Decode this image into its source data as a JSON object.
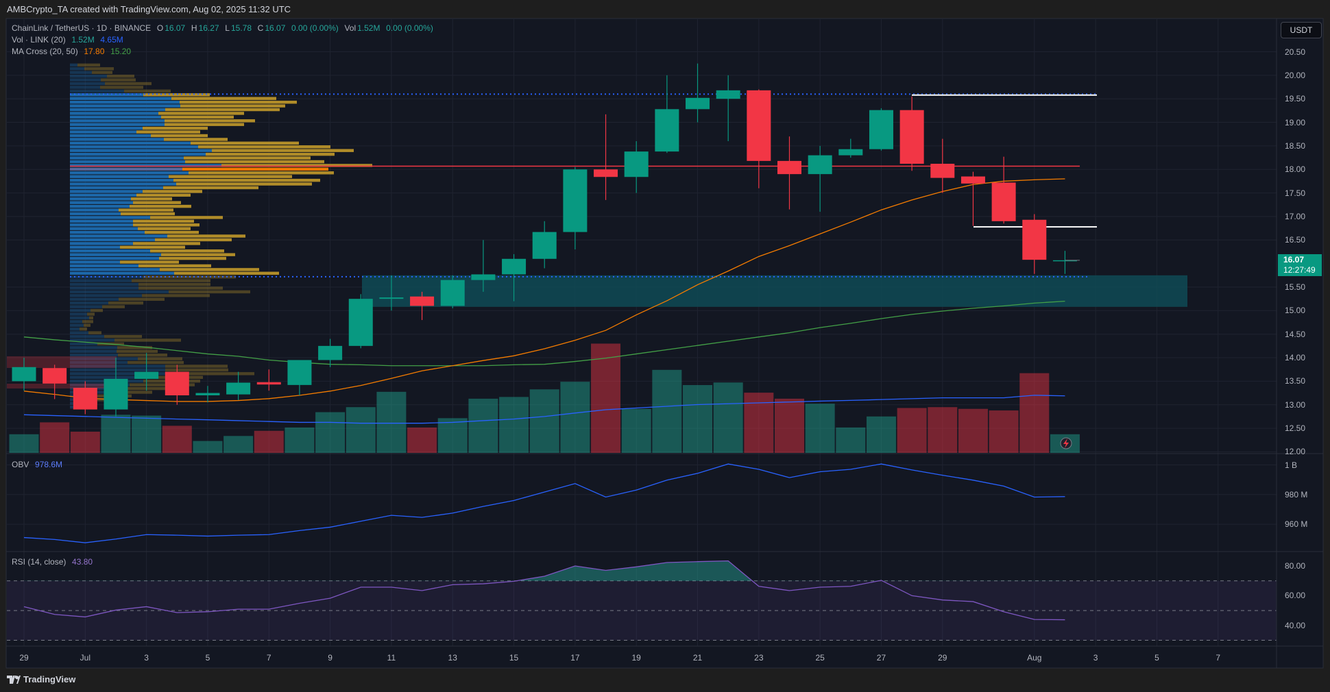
{
  "header": {
    "title": "AMBCrypto_TA created with TradingView.com, Aug 02, 2025 11:32 UTC"
  },
  "legend": {
    "symbol": "ChainLink / TetherUS · 1D · BINANCE",
    "o_label": "O",
    "o": "16.07",
    "h_label": "H",
    "h": "16.27",
    "l_label": "L",
    "l": "15.78",
    "c_label": "C",
    "c": "16.07",
    "change": "0.00 (0.00%)",
    "vol_label": "Vol",
    "vol": "1.52M",
    "vol_change": "0.00 (0.00%)",
    "vol_ind": "Vol · LINK (20)",
    "vol_ind_v1": "1.52M",
    "vol_ind_v2": "4.65M",
    "ma_ind": "MA Cross (20, 50)",
    "ma_fast": "17.80",
    "ma_slow": "15.20",
    "obv_ind": "OBV",
    "obv_val": "978.6M",
    "rsi_ind": "RSI (14, close)",
    "rsi_val": "43.80"
  },
  "price_axis": {
    "currency": "USDT",
    "ticks": [
      "20.50",
      "20.00",
      "19.50",
      "19.00",
      "18.50",
      "18.00",
      "17.50",
      "17.00",
      "16.50",
      "15.50",
      "15.00",
      "14.50",
      "14.00",
      "13.50",
      "13.00",
      "12.50",
      "12.00"
    ],
    "last_price": "16.07",
    "countdown": "12:27:49"
  },
  "obv_axis": {
    "ticks": [
      "1 B",
      "980 M",
      "960 M"
    ]
  },
  "rsi_axis": {
    "ticks": [
      "80.00",
      "60.00",
      "40.00"
    ]
  },
  "time_axis": {
    "ticks": [
      {
        "label": "29",
        "date": "2025-06-29"
      },
      {
        "label": "Jul",
        "date": "2025-07-01"
      },
      {
        "label": "3",
        "date": "2025-07-03"
      },
      {
        "label": "5",
        "date": "2025-07-05"
      },
      {
        "label": "7",
        "date": "2025-07-07"
      },
      {
        "label": "9",
        "date": "2025-07-09"
      },
      {
        "label": "11",
        "date": "2025-07-11"
      },
      {
        "label": "13",
        "date": "2025-07-13"
      },
      {
        "label": "15",
        "date": "2025-07-15"
      },
      {
        "label": "17",
        "date": "2025-07-17"
      },
      {
        "label": "19",
        "date": "2025-07-19"
      },
      {
        "label": "21",
        "date": "2025-07-21"
      },
      {
        "label": "23",
        "date": "2025-07-23"
      },
      {
        "label": "25",
        "date": "2025-07-25"
      },
      {
        "label": "27",
        "date": "2025-07-27"
      },
      {
        "label": "29",
        "date": "2025-07-29"
      },
      {
        "label": "Aug",
        "date": "2025-08-01"
      },
      {
        "label": "3",
        "date": "2025-08-03"
      },
      {
        "label": "5",
        "date": "2025-08-05"
      },
      {
        "label": "7",
        "date": "2025-08-07"
      }
    ]
  },
  "footer": {
    "brand": "TradingView"
  },
  "colors": {
    "up": "#089981",
    "down": "#f23645",
    "ma_fast": "#f57c00",
    "ma_slow": "#43a047",
    "vol_ma": "#2962ff",
    "obv": "#2962ff",
    "rsi": "#7e57c2",
    "zone": "#0f4a55",
    "profile_up": "#1c6cb0",
    "profile_down": "#b8922a"
  },
  "chart_data": {
    "type": "candlestick",
    "candles": [
      {
        "date": "2025-06-29",
        "o": 13.5,
        "h": 14.0,
        "l": 13.3,
        "c": 13.8,
        "vol": 1.52
      },
      {
        "date": "2025-06-30",
        "o": 13.78,
        "h": 13.85,
        "l": 13.12,
        "c": 13.45,
        "vol": 2.49
      },
      {
        "date": "2025-07-01",
        "o": 13.36,
        "h": 13.5,
        "l": 12.8,
        "c": 12.9,
        "vol": 1.73
      },
      {
        "date": "2025-07-02",
        "o": 12.9,
        "h": 14.0,
        "l": 12.75,
        "c": 13.55,
        "vol": 3.11
      },
      {
        "date": "2025-07-03",
        "o": 13.55,
        "h": 14.1,
        "l": 13.3,
        "c": 13.7,
        "vol": 3.04
      },
      {
        "date": "2025-07-04",
        "o": 13.7,
        "h": 13.85,
        "l": 13.0,
        "c": 13.2,
        "vol": 2.21
      },
      {
        "date": "2025-07-05",
        "o": 13.2,
        "h": 13.4,
        "l": 13.05,
        "c": 13.25,
        "vol": 0.97
      },
      {
        "date": "2025-07-06",
        "o": 13.22,
        "h": 13.7,
        "l": 13.1,
        "c": 13.47,
        "vol": 1.38
      },
      {
        "date": "2025-07-07",
        "o": 13.48,
        "h": 13.75,
        "l": 13.3,
        "c": 13.43,
        "vol": 1.8
      },
      {
        "date": "2025-07-08",
        "o": 13.42,
        "h": 13.95,
        "l": 13.2,
        "c": 13.95,
        "vol": 2.07
      },
      {
        "date": "2025-07-09",
        "o": 13.95,
        "h": 14.4,
        "l": 13.8,
        "c": 14.25,
        "vol": 3.32
      },
      {
        "date": "2025-07-10",
        "o": 14.25,
        "h": 15.35,
        "l": 14.2,
        "c": 15.25,
        "vol": 3.73
      },
      {
        "date": "2025-07-11",
        "o": 15.25,
        "h": 15.75,
        "l": 15.0,
        "c": 15.28,
        "vol": 4.98
      },
      {
        "date": "2025-07-12",
        "o": 15.3,
        "h": 15.4,
        "l": 14.8,
        "c": 15.1,
        "vol": 2.07
      },
      {
        "date": "2025-07-13",
        "o": 15.1,
        "h": 15.75,
        "l": 15.05,
        "c": 15.65,
        "vol": 2.83
      },
      {
        "date": "2025-07-14",
        "o": 15.65,
        "h": 16.5,
        "l": 15.4,
        "c": 15.77,
        "vol": 4.42
      },
      {
        "date": "2025-07-15",
        "o": 15.77,
        "h": 16.2,
        "l": 15.2,
        "c": 16.1,
        "vol": 4.56
      },
      {
        "date": "2025-07-16",
        "o": 16.1,
        "h": 16.9,
        "l": 15.9,
        "c": 16.67,
        "vol": 5.18
      },
      {
        "date": "2025-07-17",
        "o": 16.67,
        "h": 18.05,
        "l": 16.3,
        "c": 18.0,
        "vol": 5.8
      },
      {
        "date": "2025-07-18",
        "o": 18.0,
        "h": 19.17,
        "l": 17.35,
        "c": 17.84,
        "vol": 8.91
      },
      {
        "date": "2025-07-19",
        "o": 17.84,
        "h": 18.6,
        "l": 17.5,
        "c": 18.38,
        "vol": 3.59
      },
      {
        "date": "2025-07-20",
        "o": 18.38,
        "h": 20.0,
        "l": 18.35,
        "c": 19.28,
        "vol": 6.77
      },
      {
        "date": "2025-07-21",
        "o": 19.28,
        "h": 20.25,
        "l": 19.0,
        "c": 19.52,
        "vol": 5.53
      },
      {
        "date": "2025-07-22",
        "o": 19.5,
        "h": 20.0,
        "l": 18.6,
        "c": 19.68,
        "vol": 5.74
      },
      {
        "date": "2025-07-23",
        "o": 19.68,
        "h": 19.7,
        "l": 17.6,
        "c": 18.18,
        "vol": 4.91
      },
      {
        "date": "2025-07-24",
        "o": 18.18,
        "h": 18.7,
        "l": 17.15,
        "c": 17.9,
        "vol": 4.42
      },
      {
        "date": "2025-07-25",
        "o": 17.9,
        "h": 18.5,
        "l": 17.1,
        "c": 18.3,
        "vol": 4.01
      },
      {
        "date": "2025-07-26",
        "o": 18.3,
        "h": 18.65,
        "l": 18.25,
        "c": 18.43,
        "vol": 2.07
      },
      {
        "date": "2025-07-27",
        "o": 18.43,
        "h": 19.3,
        "l": 18.4,
        "c": 19.26,
        "vol": 2.97
      },
      {
        "date": "2025-07-28",
        "o": 19.26,
        "h": 19.55,
        "l": 17.97,
        "c": 18.12,
        "vol": 3.66
      },
      {
        "date": "2025-07-29",
        "o": 18.12,
        "h": 18.65,
        "l": 17.5,
        "c": 17.82,
        "vol": 3.73
      },
      {
        "date": "2025-07-30",
        "o": 17.85,
        "h": 17.95,
        "l": 16.8,
        "c": 17.7,
        "vol": 3.59
      },
      {
        "date": "2025-07-31",
        "o": 17.72,
        "h": 18.27,
        "l": 16.85,
        "c": 16.9,
        "vol": 3.46
      },
      {
        "date": "2025-08-01",
        "o": 16.93,
        "h": 17.05,
        "l": 15.78,
        "c": 16.08,
        "vol": 6.5
      },
      {
        "date": "2025-08-02",
        "o": 16.07,
        "h": 16.27,
        "l": 15.78,
        "c": 16.07,
        "vol": 1.52
      }
    ],
    "ma20": [
      13.29,
      13.22,
      13.14,
      13.11,
      13.09,
      13.07,
      13.07,
      13.09,
      13.13,
      13.2,
      13.29,
      13.41,
      13.56,
      13.72,
      13.83,
      13.94,
      14.04,
      14.19,
      14.37,
      14.58,
      14.91,
      15.21,
      15.55,
      15.84,
      16.15,
      16.38,
      16.63,
      16.88,
      17.14,
      17.35,
      17.53,
      17.68,
      17.75,
      17.78,
      17.8
    ],
    "ma50": [
      14.44,
      14.38,
      14.33,
      14.28,
      14.22,
      14.15,
      14.08,
      14.03,
      13.95,
      13.9,
      13.86,
      13.85,
      13.83,
      13.83,
      13.83,
      13.83,
      13.85,
      13.86,
      13.92,
      13.99,
      14.08,
      14.17,
      14.26,
      14.35,
      14.44,
      14.53,
      14.64,
      14.73,
      14.83,
      14.92,
      14.99,
      15.05,
      15.1,
      15.16,
      15.2
    ],
    "vol_ma": [
      3.11,
      3.04,
      2.97,
      2.9,
      2.83,
      2.76,
      2.7,
      2.63,
      2.56,
      2.49,
      2.49,
      2.42,
      2.42,
      2.42,
      2.49,
      2.63,
      2.76,
      2.97,
      3.25,
      3.52,
      3.66,
      3.8,
      3.94,
      4.01,
      4.08,
      4.15,
      4.22,
      4.28,
      4.35,
      4.42,
      4.49,
      4.49,
      4.49,
      4.7,
      4.65
    ],
    "obv": [
      951,
      949.7,
      947.5,
      950,
      953,
      952.6,
      952,
      952.6,
      953,
      955.7,
      958,
      962,
      966,
      964.6,
      967.5,
      972,
      976,
      981.7,
      987.4,
      978.3,
      983,
      989.7,
      994.3,
      1000.6,
      997,
      991.4,
      995.4,
      997,
      1000.6,
      996.6,
      993,
      989.7,
      985.7,
      978.3,
      978.6
    ],
    "rsi": [
      52.6,
      47.4,
      45.7,
      50.3,
      52.6,
      48.6,
      49.2,
      50.9,
      50.9,
      54.9,
      58.3,
      65.7,
      65.7,
      63.4,
      67.4,
      68,
      69.7,
      73.1,
      80,
      77,
      79.4,
      82.3,
      82.9,
      83.4,
      66.3,
      63.4,
      65.7,
      66.3,
      70.3,
      60,
      57.1,
      56,
      49.2,
      44,
      43.8
    ],
    "rsi_bands": {
      "upper": 70,
      "middle": 50,
      "lower": 30
    },
    "price_range": [
      12.0,
      20.5
    ],
    "levels": {
      "value_area_high": 19.6,
      "value_area_low": 15.72,
      "poc": 18.07,
      "resistance": 19.58,
      "support": 16.78,
      "demand_zone": [
        15.08,
        15.75
      ]
    },
    "volume_profile": {
      "top_price": 20.25,
      "row_size": 0.079,
      "value_area_rows": [
        8,
        57
      ],
      "rows": [
        [
          11,
          44
        ],
        [
          21,
          64
        ],
        [
          32,
          62
        ],
        [
          54,
          94
        ],
        [
          45,
          96
        ],
        [
          51,
          119
        ],
        [
          44,
          107
        ],
        [
          79,
          147
        ],
        [
          107,
          204
        ],
        [
          148,
          301
        ],
        [
          160,
          331
        ],
        [
          161,
          314
        ],
        [
          139,
          306
        ],
        [
          129,
          254
        ],
        [
          133,
          239
        ],
        [
          138,
          270
        ],
        [
          138,
          254
        ],
        [
          106,
          201
        ],
        [
          97,
          190
        ],
        [
          118,
          201
        ],
        [
          137,
          230
        ],
        [
          176,
          334
        ],
        [
          187,
          380
        ],
        [
          207,
          414
        ],
        [
          198,
          386
        ],
        [
          166,
          351
        ],
        [
          168,
          371
        ],
        [
          221,
          441
        ],
        [
          164,
          377
        ],
        [
          173,
          385
        ],
        [
          144,
          324
        ],
        [
          151,
          365
        ],
        [
          155,
          353
        ],
        [
          136,
          275
        ],
        [
          106,
          193
        ],
        [
          97,
          176
        ],
        [
          89,
          149
        ],
        [
          92,
          162
        ],
        [
          87,
          177
        ],
        [
          71,
          151
        ],
        [
          74,
          153
        ],
        [
          117,
          223
        ],
        [
          92,
          181
        ],
        [
          92,
          189
        ],
        [
          99,
          176
        ],
        [
          109,
          188
        ],
        [
          142,
          256
        ],
        [
          124,
          236
        ],
        [
          92,
          190
        ],
        [
          73,
          168
        ],
        [
          117,
          225
        ],
        [
          133,
          241
        ],
        [
          130,
          228
        ],
        [
          73,
          159
        ],
        [
          100,
          206
        ],
        [
          131,
          276
        ],
        [
          152,
          305
        ],
        [
          107,
          242
        ],
        [
          90,
          205
        ],
        [
          100,
          205
        ],
        [
          100,
          223
        ],
        [
          144,
          263
        ],
        [
          105,
          204
        ],
        [
          71,
          138
        ],
        [
          56,
          107
        ],
        [
          47,
          80
        ],
        [
          30,
          48
        ],
        [
          25,
          36
        ],
        [
          28,
          34
        ],
        [
          18,
          34
        ],
        [
          20,
          30
        ],
        [
          14,
          25
        ],
        [
          27,
          46
        ],
        [
          50,
          105
        ],
        [
          65,
          162
        ],
        [
          40,
          79
        ],
        [
          69,
          120
        ],
        [
          68,
          128
        ],
        [
          70,
          142
        ],
        [
          99,
          164
        ],
        [
          84,
          166
        ],
        [
          139,
          230
        ],
        [
          139,
          231
        ],
        [
          139,
          269
        ],
        [
          99,
          194
        ],
        [
          107,
          190
        ],
        [
          87,
          182
        ],
        [
          80,
          150
        ],
        [
          60,
          120
        ],
        [
          40,
          90
        ],
        [
          30,
          70
        ],
        [
          20,
          40
        ],
        [
          5,
          10
        ]
      ]
    }
  }
}
